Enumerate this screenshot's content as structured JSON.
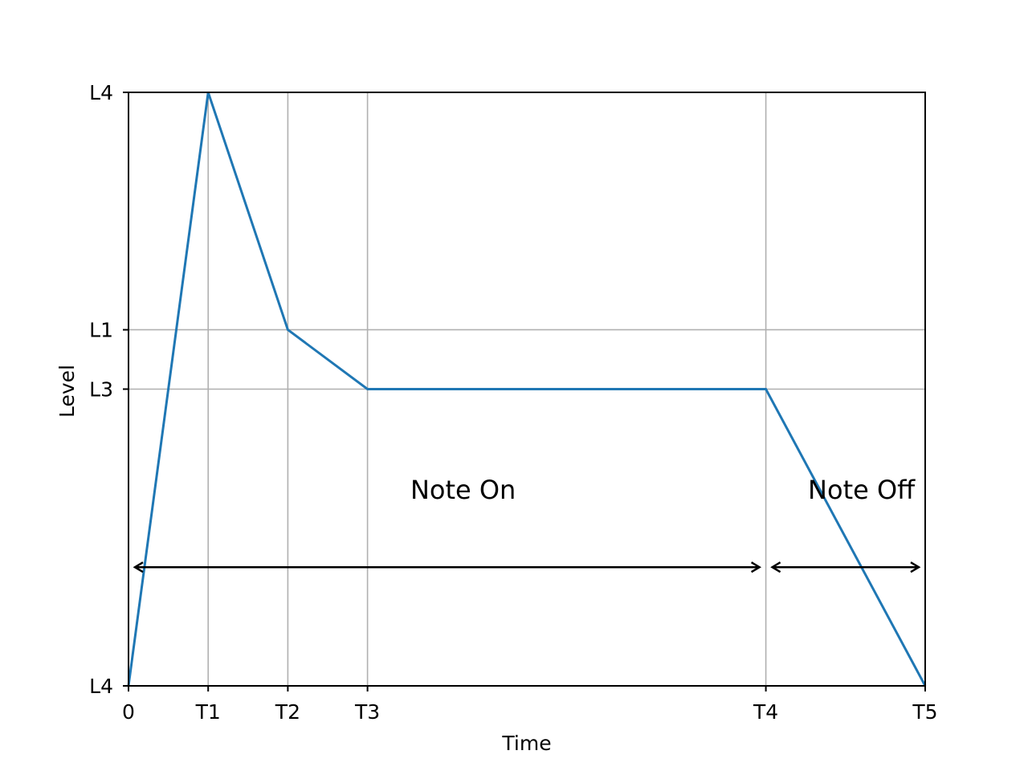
{
  "chart_data": {
    "type": "line",
    "title": "",
    "xlabel": "Time",
    "ylabel": "Level",
    "grid": true,
    "xlim": [
      0,
      10
    ],
    "ylim": [
      0,
      1
    ],
    "x_ticks": [
      {
        "value": 0,
        "label": "0"
      },
      {
        "value": 1,
        "label": "T1"
      },
      {
        "value": 2,
        "label": "T2"
      },
      {
        "value": 3,
        "label": "T3"
      },
      {
        "value": 8,
        "label": "T4"
      },
      {
        "value": 10,
        "label": "T5"
      }
    ],
    "y_ticks": [
      {
        "value": 0,
        "label": "L4"
      },
      {
        "value": 0.5,
        "label": "L3"
      },
      {
        "value": 0.6,
        "label": "L1"
      },
      {
        "value": 1,
        "label": "L4"
      }
    ],
    "series": [
      {
        "color": "#1f77b4",
        "x": [
          0,
          1,
          2,
          3,
          8,
          10
        ],
        "y": [
          0,
          1,
          0.6,
          0.5,
          0.5,
          0
        ]
      }
    ],
    "annotations": [
      {
        "text": "Note On",
        "x": 4.2,
        "y": 0.315
      },
      {
        "text": "Note Off",
        "x": 9.2,
        "y": 0.315
      }
    ],
    "spans": [
      {
        "x_start": 0,
        "x_end": 8,
        "y": 0.2
      },
      {
        "x_start": 8,
        "x_end": 10,
        "y": 0.2
      }
    ]
  }
}
